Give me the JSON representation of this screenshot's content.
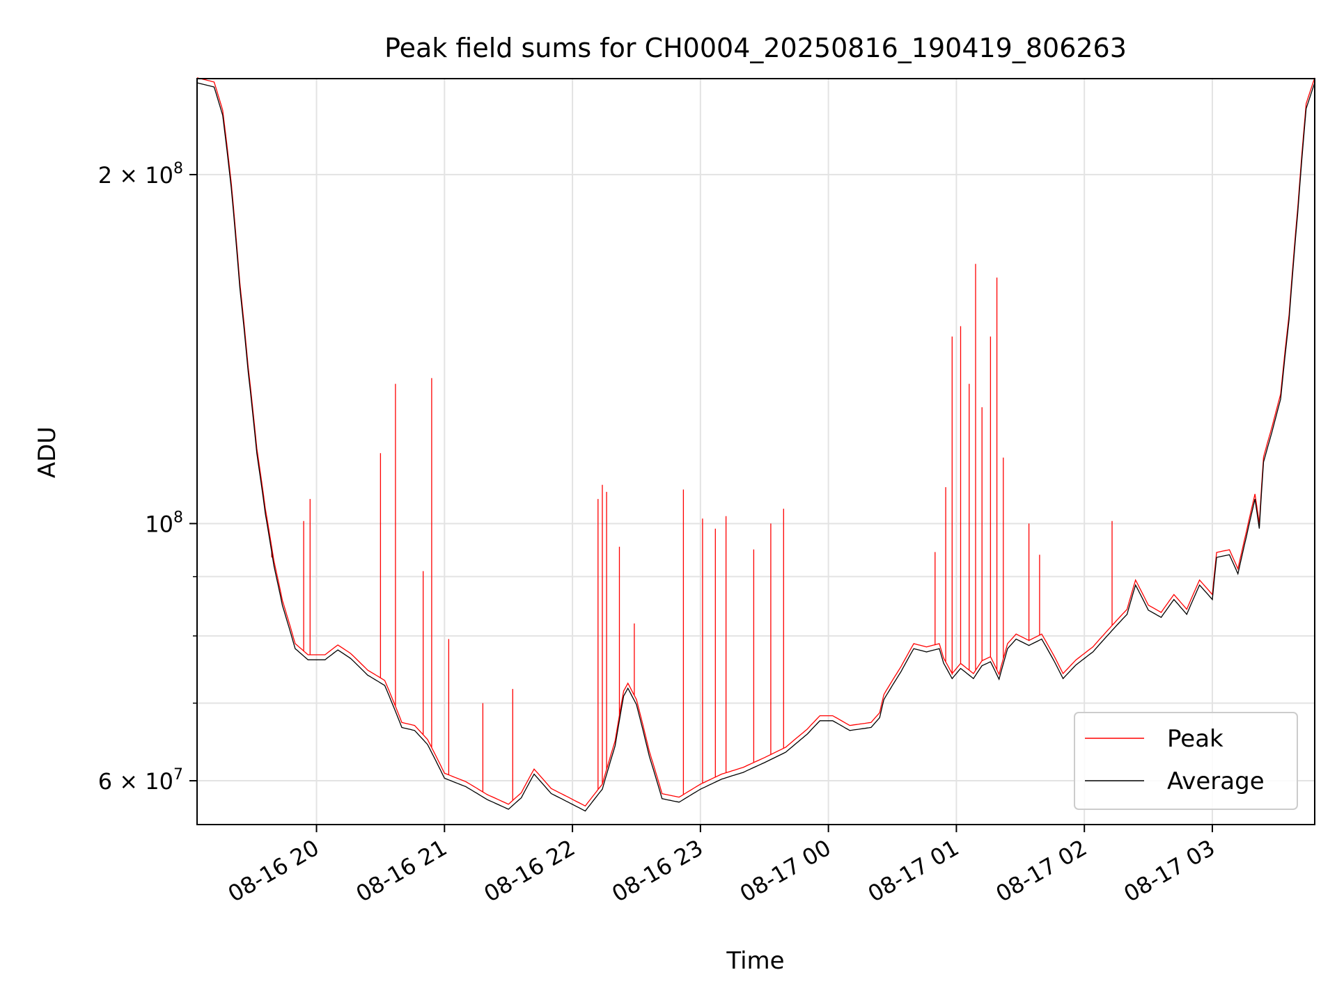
{
  "chart_data": {
    "type": "line",
    "title": "Peak field sums for CH0004_20250816_190419_806263",
    "xlabel": "Time",
    "ylabel": "ADU",
    "y_scale": "log",
    "ylim": [
      55000000,
      242000000
    ],
    "xlim": [
      "2025-08-16 19:04",
      "2025-08-17 03:48"
    ],
    "grid": true,
    "legend_position": "lower right",
    "x_ticks": [
      {
        "t": "2025-08-16 20:00",
        "label": "08-16 20"
      },
      {
        "t": "2025-08-16 21:00",
        "label": "08-16 21"
      },
      {
        "t": "2025-08-16 22:00",
        "label": "08-16 22"
      },
      {
        "t": "2025-08-16 23:00",
        "label": "08-16 23"
      },
      {
        "t": "2025-08-17 00:00",
        "label": "08-17 00"
      },
      {
        "t": "2025-08-17 01:00",
        "label": "08-17 01"
      },
      {
        "t": "2025-08-17 02:00",
        "label": "08-17 02"
      },
      {
        "t": "2025-08-17 03:00",
        "label": "08-17 03"
      }
    ],
    "y_major_ticks": [
      {
        "value": 60000000,
        "base": "6 × 10",
        "exp": "7"
      },
      {
        "value": 100000000,
        "base": "10",
        "exp": "8"
      },
      {
        "value": 200000000,
        "base": "2 × 10",
        "exp": "8"
      }
    ],
    "y_minor_ticks": [
      70000000,
      80000000,
      90000000
    ],
    "series": [
      {
        "name": "Average",
        "color": "#000000",
        "points": [
          [
            "2025-08-16 19:04",
            240000000
          ],
          [
            "2025-08-16 19:12",
            238000000
          ],
          [
            "2025-08-16 19:16",
            225000000
          ],
          [
            "2025-08-16 19:20",
            195000000
          ],
          [
            "2025-08-16 19:24",
            160000000
          ],
          [
            "2025-08-16 19:28",
            135000000
          ],
          [
            "2025-08-16 19:32",
            115000000
          ],
          [
            "2025-08-16 19:36",
            102000000
          ],
          [
            "2025-08-16 19:40",
            92000000
          ],
          [
            "2025-08-16 19:44",
            85000000
          ],
          [
            "2025-08-16 19:50",
            78000000
          ],
          [
            "2025-08-16 19:56",
            76300000
          ],
          [
            "2025-08-16 20:04",
            76300000
          ],
          [
            "2025-08-16 20:10",
            77800000
          ],
          [
            "2025-08-16 20:16",
            76500000
          ],
          [
            "2025-08-16 20:24",
            74000000
          ],
          [
            "2025-08-16 20:32",
            72500000
          ],
          [
            "2025-08-16 20:40",
            66700000
          ],
          [
            "2025-08-16 20:46",
            66300000
          ],
          [
            "2025-08-16 20:52",
            64500000
          ],
          [
            "2025-08-16 21:00",
            60300000
          ],
          [
            "2025-08-16 21:10",
            59300000
          ],
          [
            "2025-08-16 21:20",
            57800000
          ],
          [
            "2025-08-16 21:30",
            56700000
          ],
          [
            "2025-08-16 21:36",
            58000000
          ],
          [
            "2025-08-16 21:42",
            60800000
          ],
          [
            "2025-08-16 21:50",
            58500000
          ],
          [
            "2025-08-16 21:58",
            57500000
          ],
          [
            "2025-08-16 22:06",
            56500000
          ],
          [
            "2025-08-16 22:14",
            59000000
          ],
          [
            "2025-08-16 22:20",
            64300000
          ],
          [
            "2025-08-16 22:24",
            71000000
          ],
          [
            "2025-08-16 22:26",
            72100000
          ],
          [
            "2025-08-16 22:30",
            69800000
          ],
          [
            "2025-08-16 22:36",
            63000000
          ],
          [
            "2025-08-16 22:42",
            57900000
          ],
          [
            "2025-08-16 22:50",
            57500000
          ],
          [
            "2025-08-16 23:00",
            59000000
          ],
          [
            "2025-08-16 23:10",
            60200000
          ],
          [
            "2025-08-16 23:20",
            61000000
          ],
          [
            "2025-08-16 23:30",
            62200000
          ],
          [
            "2025-08-16 23:40",
            63500000
          ],
          [
            "2025-08-16 23:50",
            65800000
          ],
          [
            "2025-08-16 23:56",
            67600000
          ],
          [
            "2025-08-17 00:02",
            67600000
          ],
          [
            "2025-08-17 00:10",
            66300000
          ],
          [
            "2025-08-17 00:20",
            66700000
          ],
          [
            "2025-08-17 00:24",
            68000000
          ],
          [
            "2025-08-17 00:26",
            70500000
          ],
          [
            "2025-08-17 00:34",
            74500000
          ],
          [
            "2025-08-17 00:40",
            78000000
          ],
          [
            "2025-08-17 00:46",
            77500000
          ],
          [
            "2025-08-17 00:52",
            78000000
          ],
          [
            "2025-08-17 00:54",
            75800000
          ],
          [
            "2025-08-17 00:58",
            73500000
          ],
          [
            "2025-08-17 01:02",
            75000000
          ],
          [
            "2025-08-17 01:08",
            73500000
          ],
          [
            "2025-08-17 01:12",
            75400000
          ],
          [
            "2025-08-17 01:16",
            76000000
          ],
          [
            "2025-08-17 01:20",
            73400000
          ],
          [
            "2025-08-17 01:24",
            78000000
          ],
          [
            "2025-08-17 01:28",
            79500000
          ],
          [
            "2025-08-17 01:34",
            78500000
          ],
          [
            "2025-08-17 01:40",
            79500000
          ],
          [
            "2025-08-17 01:46",
            76000000
          ],
          [
            "2025-08-17 01:50",
            73500000
          ],
          [
            "2025-08-17 01:56",
            75500000
          ],
          [
            "2025-08-17 02:04",
            77500000
          ],
          [
            "2025-08-17 02:12",
            80500000
          ],
          [
            "2025-08-17 02:20",
            83500000
          ],
          [
            "2025-08-17 02:24",
            88500000
          ],
          [
            "2025-08-17 02:30",
            84200000
          ],
          [
            "2025-08-17 02:36",
            83000000
          ],
          [
            "2025-08-17 02:42",
            86000000
          ],
          [
            "2025-08-17 02:48",
            83500000
          ],
          [
            "2025-08-17 02:54",
            88500000
          ],
          [
            "2025-08-17 03:00",
            86000000
          ],
          [
            "2025-08-17 03:02",
            93500000
          ],
          [
            "2025-08-17 03:08",
            94000000
          ],
          [
            "2025-08-17 03:12",
            90500000
          ],
          [
            "2025-08-17 03:16",
            97500000
          ],
          [
            "2025-08-17 03:20",
            105000000
          ],
          [
            "2025-08-17 03:22",
            99000000
          ],
          [
            "2025-08-17 03:24",
            113000000
          ],
          [
            "2025-08-17 03:28",
            120000000
          ],
          [
            "2025-08-17 03:32",
            128000000
          ],
          [
            "2025-08-17 03:36",
            150000000
          ],
          [
            "2025-08-17 03:40",
            185000000
          ],
          [
            "2025-08-17 03:44",
            228000000
          ],
          [
            "2025-08-17 03:48",
            240000000
          ]
        ]
      },
      {
        "name": "Peak",
        "color": "#ff0000",
        "note_baseline": "follows Average with intermittent upward spikes",
        "spikes": [
          [
            "2025-08-16 19:39",
            93500000
          ],
          [
            "2025-08-16 19:54",
            100500000
          ],
          [
            "2025-08-16 19:57",
            105000000
          ],
          [
            "2025-08-16 20:30",
            115000000
          ],
          [
            "2025-08-16 20:37",
            132000000
          ],
          [
            "2025-08-16 20:50",
            91000000
          ],
          [
            "2025-08-16 20:54",
            133500000
          ],
          [
            "2025-08-16 21:02",
            79500000
          ],
          [
            "2025-08-16 21:18",
            70000000
          ],
          [
            "2025-08-16 21:32",
            72000000
          ],
          [
            "2025-08-16 22:12",
            105000000
          ],
          [
            "2025-08-16 22:14",
            108000000
          ],
          [
            "2025-08-16 22:16",
            106500000
          ],
          [
            "2025-08-16 22:22",
            95500000
          ],
          [
            "2025-08-16 22:29",
            82000000
          ],
          [
            "2025-08-16 22:52",
            107000000
          ],
          [
            "2025-08-16 23:01",
            101000000
          ],
          [
            "2025-08-16 23:07",
            99000000
          ],
          [
            "2025-08-16 23:12",
            101500000
          ],
          [
            "2025-08-16 23:25",
            95000000
          ],
          [
            "2025-08-16 23:33",
            100000000
          ],
          [
            "2025-08-16 23:39",
            103000000
          ],
          [
            "2025-08-17 00:50",
            94500000
          ],
          [
            "2025-08-17 00:55",
            107500000
          ],
          [
            "2025-08-17 00:58",
            145000000
          ],
          [
            "2025-08-17 01:02",
            148000000
          ],
          [
            "2025-08-17 01:06",
            132000000
          ],
          [
            "2025-08-17 01:09",
            167500000
          ],
          [
            "2025-08-17 01:12",
            126000000
          ],
          [
            "2025-08-17 01:16",
            145000000
          ],
          [
            "2025-08-17 01:19",
            163000000
          ],
          [
            "2025-08-17 01:22",
            114000000
          ],
          [
            "2025-08-17 01:34",
            100000000
          ],
          [
            "2025-08-17 01:39",
            94000000
          ],
          [
            "2025-08-17 02:13",
            100500000
          ]
        ]
      }
    ]
  }
}
